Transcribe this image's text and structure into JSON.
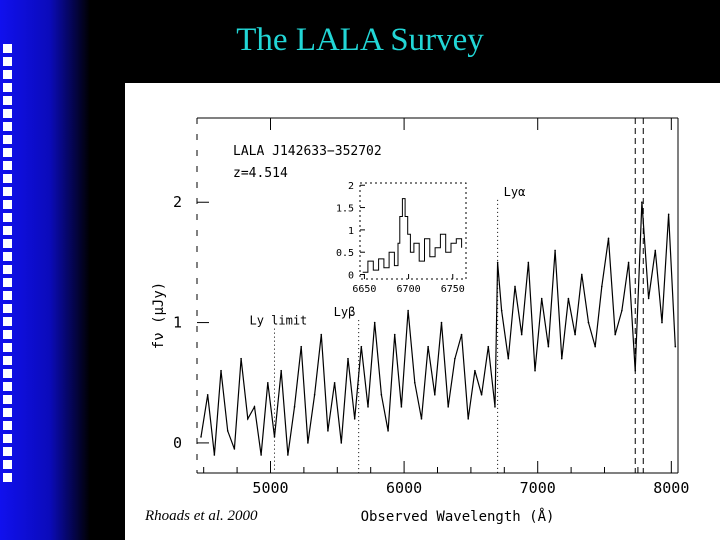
{
  "slide": {
    "title": "The LALA Survey",
    "credit": "Rhoads et al. 2000",
    "colors": {
      "title": "#22d6d6",
      "sidebar": "#1010ee",
      "background": "#000000",
      "figure_bg": "#ffffff"
    }
  },
  "chart_data": [
    {
      "type": "line",
      "title": "",
      "object_name": "LALA J142633−352702",
      "redshift_label": "z=4.514",
      "xlabel": "Observed Wavelength (Å)",
      "ylabel": "fν (μJy)",
      "xlim": [
        4450,
        8050
      ],
      "ylim": [
        -0.25,
        2.7
      ],
      "x_ticks": [
        5000,
        6000,
        7000,
        8000
      ],
      "x_tick_labels": [
        "5000",
        "6000",
        "7000",
        "8000"
      ],
      "y_ticks": [
        0,
        1,
        2
      ],
      "y_tick_labels": [
        "0",
        "1",
        "2"
      ],
      "grid": false,
      "annotations": [
        {
          "label": "Ly limit",
          "x": 5030
        },
        {
          "label": "Lyβ",
          "x": 5660
        },
        {
          "label": "Lyα",
          "x": 6700
        }
      ],
      "dashed_lines_x": [
        7730,
        7790
      ],
      "series": [
        {
          "x": [
            4480,
            4530,
            4580,
            4630,
            4680,
            4730,
            4780,
            4830,
            4880,
            4930,
            4980,
            5030,
            5080,
            5130,
            5180,
            5230,
            5280,
            5330,
            5380,
            5430,
            5480,
            5530,
            5580,
            5630,
            5680,
            5730,
            5780,
            5830,
            5880,
            5930,
            5980,
            6030,
            6080,
            6130,
            6180,
            6230,
            6280,
            6330,
            6380,
            6430,
            6480,
            6530,
            6580,
            6630,
            6680,
            6700,
            6730,
            6780,
            6830,
            6880,
            6930,
            6980,
            7030,
            7080,
            7130,
            7180,
            7230,
            7280,
            7330,
            7380,
            7430,
            7480,
            7530,
            7580,
            7630,
            7680,
            7730,
            7780,
            7830,
            7880,
            7930,
            7980,
            8030
          ],
          "y": [
            0.05,
            0.4,
            -0.1,
            0.6,
            0.1,
            -0.05,
            0.7,
            0.2,
            0.3,
            -0.1,
            0.5,
            0.05,
            0.6,
            -0.1,
            0.3,
            0.8,
            0.0,
            0.4,
            0.9,
            0.1,
            0.5,
            0.0,
            0.7,
            0.2,
            0.8,
            0.3,
            1.0,
            0.4,
            0.1,
            0.9,
            0.3,
            1.1,
            0.5,
            0.2,
            0.8,
            0.4,
            1.0,
            0.3,
            0.7,
            0.9,
            0.2,
            0.6,
            0.4,
            0.8,
            0.3,
            1.5,
            1.1,
            0.7,
            1.3,
            0.9,
            1.5,
            0.6,
            1.2,
            0.8,
            1.6,
            0.7,
            1.2,
            0.9,
            1.4,
            1.0,
            0.8,
            1.3,
            1.7,
            0.9,
            1.1,
            1.5,
            0.6,
            2.0,
            1.2,
            1.6,
            1.0,
            1.9,
            0.8
          ]
        }
      ]
    },
    {
      "type": "line",
      "title": "",
      "inset": true,
      "xlim": [
        6645,
        6765
      ],
      "ylim": [
        -0.1,
        2.05
      ],
      "x_ticks": [
        6650,
        6700,
        6750
      ],
      "x_tick_labels": [
        "6650",
        "6700",
        "6750"
      ],
      "y_ticks": [
        0,
        0.5,
        1,
        1.5,
        2
      ],
      "y_tick_labels": [
        "0",
        "0.5",
        "1",
        "1.5",
        "2"
      ],
      "series": [
        {
          "x": [
            6648,
            6654,
            6660,
            6666,
            6672,
            6678,
            6684,
            6688,
            6690,
            6693,
            6696,
            6699,
            6702,
            6706,
            6712,
            6718,
            6724,
            6730,
            6736,
            6742,
            6748,
            6754,
            6760
          ],
          "y": [
            0.05,
            0.3,
            0.1,
            0.35,
            0.15,
            0.5,
            0.2,
            0.7,
            1.3,
            1.7,
            1.3,
            0.9,
            0.5,
            0.7,
            0.3,
            0.8,
            0.4,
            0.6,
            0.9,
            0.5,
            0.7,
            0.8,
            0.6
          ]
        }
      ]
    }
  ]
}
